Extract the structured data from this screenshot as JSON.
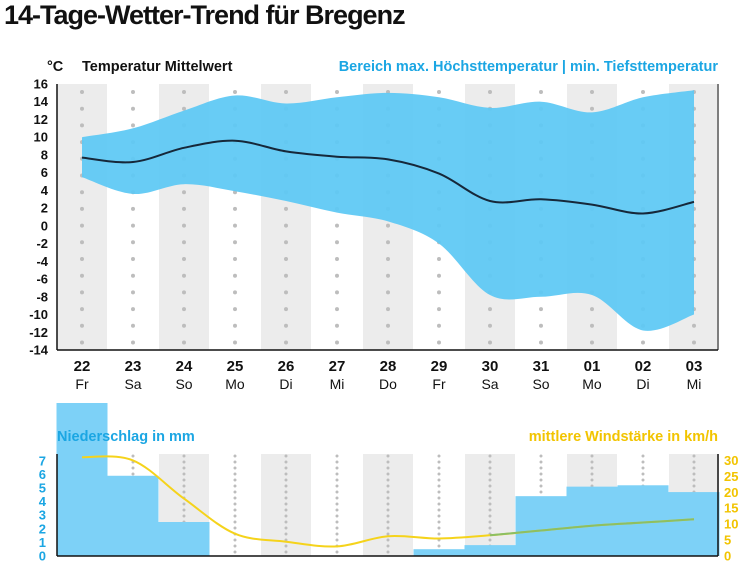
{
  "title": "14-Tage-Wetter-Trend für Bregenz",
  "colors": {
    "band": "#5cc8f4",
    "mean_line": "#16283a",
    "precip_bar": "#7dd1f7",
    "wind_line": "#f5d31b",
    "wind_line_overlap": "#8cbf64",
    "precip_text": "#1ba6e3",
    "wind_text": "#f2c400",
    "column_stripe": "#ececec"
  },
  "chart_data": [
    {
      "type": "area",
      "unit_label": "°C",
      "legend_mean": "Temperatur Mittelwert",
      "legend_range": "Bereich max. Höchsttemperatur | min. Tiefsttemperatur",
      "ylim": [
        -14,
        16
      ],
      "yticks": [
        16,
        14,
        12,
        10,
        8,
        6,
        4,
        2,
        0,
        -2,
        -4,
        -6,
        -8,
        -10,
        -12,
        -14
      ],
      "grid": "dotted vertical lines, alternating grey column stripes",
      "days": [
        {
          "date": "22",
          "weekday": "Fr"
        },
        {
          "date": "23",
          "weekday": "Sa"
        },
        {
          "date": "24",
          "weekday": "So"
        },
        {
          "date": "25",
          "weekday": "Mo"
        },
        {
          "date": "26",
          "weekday": "Di"
        },
        {
          "date": "27",
          "weekday": "Mi"
        },
        {
          "date": "28",
          "weekday": "Do"
        },
        {
          "date": "29",
          "weekday": "Fr"
        },
        {
          "date": "30",
          "weekday": "Sa"
        },
        {
          "date": "31",
          "weekday": "So"
        },
        {
          "date": "01",
          "weekday": "Mo"
        },
        {
          "date": "02",
          "weekday": "Di"
        },
        {
          "date": "03",
          "weekday": "Mi"
        }
      ],
      "series": [
        {
          "name": "Bereich max. Höchsttemperatur",
          "values": [
            10,
            11,
            13,
            14.7,
            13.8,
            14.5,
            15,
            14.5,
            13.3,
            14,
            12.8,
            14.5,
            15.3
          ]
        },
        {
          "name": "Temperatur Mittelwert",
          "values": [
            7.7,
            7.2,
            8.8,
            9.6,
            8.4,
            7.8,
            7.5,
            5.9,
            2.8,
            3,
            2.4,
            1.4,
            2.7
          ]
        },
        {
          "name": "min. Tiefsttemperatur",
          "values": [
            5.5,
            3.6,
            4.7,
            3.9,
            2.8,
            1.5,
            0.5,
            -2,
            -7.8,
            -8,
            -7.8,
            -11.8,
            -10
          ]
        }
      ]
    },
    {
      "type": "bar",
      "label_precip": "Niederschlag in mm",
      "label_wind": "mittlere Windstärke in km/h",
      "y_left": {
        "label": "Niederschlag in mm",
        "ylim": [
          0,
          7.5
        ],
        "ticks": [
          7,
          6,
          5,
          4,
          3,
          2,
          1,
          0
        ]
      },
      "y_right": {
        "label": "mittlere Windstärke in km/h",
        "ylim": [
          0,
          32
        ],
        "ticks": [
          30,
          25,
          20,
          15,
          10,
          5,
          0
        ]
      },
      "series": [
        {
          "name": "Niederschlag in mm",
          "values": [
            11,
            5.9,
            2.5,
            0,
            0,
            0,
            0,
            0.5,
            0.8,
            4.4,
            5.1,
            5.2,
            4.7
          ]
        },
        {
          "name": "mittlere Windstärke in km/h",
          "values": [
            31,
            30,
            18,
            7,
            4.5,
            3,
            6.2,
            5.5,
            6.5,
            8,
            9.5,
            10.5,
            11.5
          ]
        }
      ]
    }
  ]
}
